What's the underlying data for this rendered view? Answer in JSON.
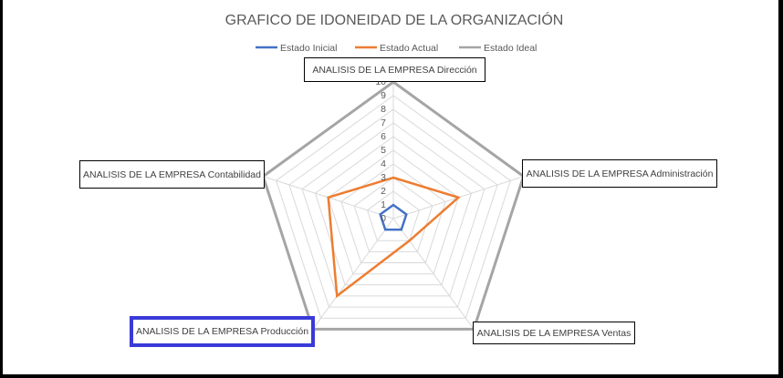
{
  "colors": {
    "inicial": "#4472c4",
    "actual": "#ed7d31",
    "ideal": "#a5a5a5",
    "grid": "#d9d9d9",
    "highlight": "#3a3ad9"
  },
  "chart_data": {
    "type": "radar",
    "title": "GRAFICO DE IDONEIDAD DE LA ORGANIZACIÓN",
    "categories": [
      "ANALISIS DE LA EMPRESA Dirección",
      "ANALISIS DE LA EMPRESA Administración",
      "ANALISIS DE LA EMPRESA Ventas",
      "ANALISIS DE LA EMPRESA Producción",
      "ANALISIS DE LA EMPRESA Contabilidad"
    ],
    "rlim": [
      0,
      10
    ],
    "ticks": [
      "0",
      "1",
      "2",
      "3",
      "4",
      "5",
      "6",
      "7",
      "8",
      "9",
      "10"
    ],
    "grid": true,
    "legend": "top",
    "highlighted_category": "ANALISIS DE LA EMPRESA Producción",
    "series": [
      {
        "name": "Estado Inicial",
        "color": "#4472c4",
        "values": [
          1,
          1,
          1,
          1,
          1
        ]
      },
      {
        "name": "Estado Actual",
        "color": "#ed7d31",
        "values": [
          3,
          5,
          2,
          7,
          5
        ]
      },
      {
        "name": "Estado Ideal",
        "color": "#a5a5a5",
        "values": [
          10,
          10,
          10,
          10,
          10
        ]
      }
    ]
  }
}
